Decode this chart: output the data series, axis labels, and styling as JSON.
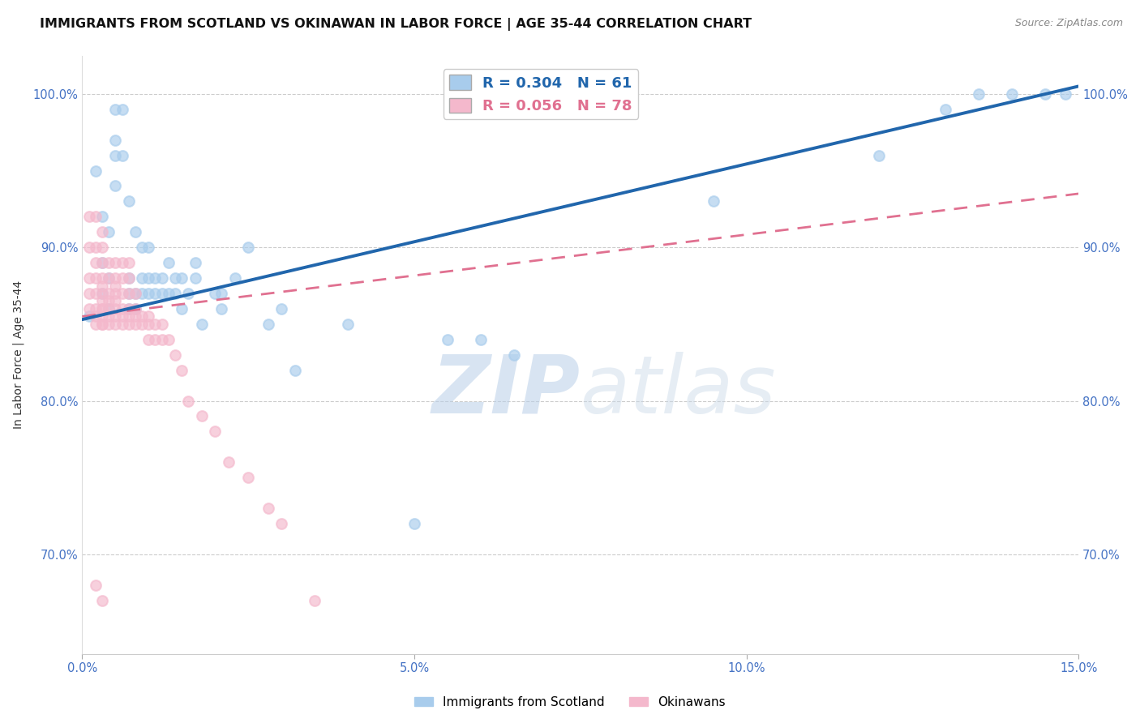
{
  "title": "IMMIGRANTS FROM SCOTLAND VS OKINAWAN IN LABOR FORCE | AGE 35-44 CORRELATION CHART",
  "source": "Source: ZipAtlas.com",
  "ylabel": "In Labor Force | Age 35-44",
  "xlim": [
    0.0,
    0.15
  ],
  "ylim": [
    0.635,
    1.025
  ],
  "xticks": [
    0.0,
    0.05,
    0.1,
    0.15
  ],
  "xtick_labels": [
    "0.0%",
    "5.0%",
    "10.0%",
    "15.0%"
  ],
  "yticks": [
    0.7,
    0.8,
    0.9,
    1.0
  ],
  "ytick_labels": [
    "70.0%",
    "80.0%",
    "90.0%",
    "100.0%"
  ],
  "scotland_color": "#a8ccec",
  "okinawan_color": "#f4b8cc",
  "scotland_R": 0.304,
  "scotland_N": 61,
  "okinawan_R": 0.056,
  "okinawan_N": 78,
  "scotland_line_color": "#2166ac",
  "okinawan_line_color": "#e07090",
  "watermark_zip": "ZIP",
  "watermark_atlas": "atlas",
  "legend_label_scotland": "Immigrants from Scotland",
  "legend_label_okinawan": "Okinawans",
  "scotland_line_x0": 0.0,
  "scotland_line_y0": 0.853,
  "scotland_line_x1": 0.15,
  "scotland_line_y1": 1.005,
  "okinawan_line_x0": 0.0,
  "okinawan_line_y0": 0.855,
  "okinawan_line_x1": 0.15,
  "okinawan_line_y1": 0.935,
  "scotland_x": [
    0.001,
    0.002,
    0.003,
    0.003,
    0.003,
    0.004,
    0.004,
    0.004,
    0.005,
    0.005,
    0.005,
    0.005,
    0.006,
    0.006,
    0.007,
    0.007,
    0.007,
    0.007,
    0.008,
    0.008,
    0.008,
    0.009,
    0.009,
    0.009,
    0.01,
    0.01,
    0.01,
    0.011,
    0.011,
    0.012,
    0.012,
    0.013,
    0.013,
    0.014,
    0.014,
    0.015,
    0.015,
    0.016,
    0.017,
    0.017,
    0.018,
    0.02,
    0.021,
    0.021,
    0.023,
    0.025,
    0.028,
    0.03,
    0.032,
    0.04,
    0.05,
    0.055,
    0.06,
    0.065,
    0.095,
    0.12,
    0.13,
    0.135,
    0.14,
    0.145,
    0.148
  ],
  "scotland_y": [
    0.855,
    0.95,
    0.87,
    0.89,
    0.92,
    0.86,
    0.88,
    0.91,
    0.94,
    0.97,
    0.96,
    0.99,
    0.96,
    0.99,
    0.86,
    0.87,
    0.88,
    0.93,
    0.86,
    0.87,
    0.91,
    0.87,
    0.88,
    0.9,
    0.87,
    0.88,
    0.9,
    0.87,
    0.88,
    0.87,
    0.88,
    0.87,
    0.89,
    0.87,
    0.88,
    0.86,
    0.88,
    0.87,
    0.88,
    0.89,
    0.85,
    0.87,
    0.86,
    0.87,
    0.88,
    0.9,
    0.85,
    0.86,
    0.82,
    0.85,
    0.72,
    0.84,
    0.84,
    0.83,
    0.93,
    0.96,
    0.99,
    1.0,
    1.0,
    1.0,
    1.0
  ],
  "okinawan_x": [
    0.001,
    0.001,
    0.001,
    0.001,
    0.001,
    0.002,
    0.002,
    0.002,
    0.002,
    0.002,
    0.002,
    0.002,
    0.002,
    0.003,
    0.003,
    0.003,
    0.003,
    0.003,
    0.003,
    0.003,
    0.003,
    0.003,
    0.003,
    0.003,
    0.003,
    0.004,
    0.004,
    0.004,
    0.004,
    0.004,
    0.004,
    0.004,
    0.005,
    0.005,
    0.005,
    0.005,
    0.005,
    0.005,
    0.005,
    0.005,
    0.006,
    0.006,
    0.006,
    0.006,
    0.006,
    0.006,
    0.007,
    0.007,
    0.007,
    0.007,
    0.007,
    0.007,
    0.008,
    0.008,
    0.008,
    0.008,
    0.009,
    0.009,
    0.01,
    0.01,
    0.01,
    0.011,
    0.011,
    0.012,
    0.012,
    0.013,
    0.014,
    0.015,
    0.016,
    0.018,
    0.02,
    0.022,
    0.025,
    0.028,
    0.03,
    0.035,
    0.002,
    0.003
  ],
  "okinawan_y": [
    0.86,
    0.87,
    0.88,
    0.9,
    0.92,
    0.85,
    0.855,
    0.86,
    0.87,
    0.88,
    0.89,
    0.9,
    0.92,
    0.85,
    0.855,
    0.86,
    0.865,
    0.87,
    0.875,
    0.88,
    0.89,
    0.9,
    0.91,
    0.85,
    0.86,
    0.85,
    0.855,
    0.86,
    0.865,
    0.87,
    0.88,
    0.89,
    0.85,
    0.855,
    0.86,
    0.865,
    0.87,
    0.875,
    0.88,
    0.89,
    0.85,
    0.855,
    0.86,
    0.87,
    0.88,
    0.89,
    0.85,
    0.855,
    0.86,
    0.87,
    0.88,
    0.89,
    0.85,
    0.855,
    0.86,
    0.87,
    0.85,
    0.855,
    0.84,
    0.85,
    0.855,
    0.84,
    0.85,
    0.84,
    0.85,
    0.84,
    0.83,
    0.82,
    0.8,
    0.79,
    0.78,
    0.76,
    0.75,
    0.73,
    0.72,
    0.67,
    0.68,
    0.67
  ],
  "background_color": "#ffffff",
  "grid_color": "#cccccc",
  "axis_color": "#4472c4",
  "title_fontsize": 11.5,
  "label_fontsize": 10,
  "tick_fontsize": 10.5
}
